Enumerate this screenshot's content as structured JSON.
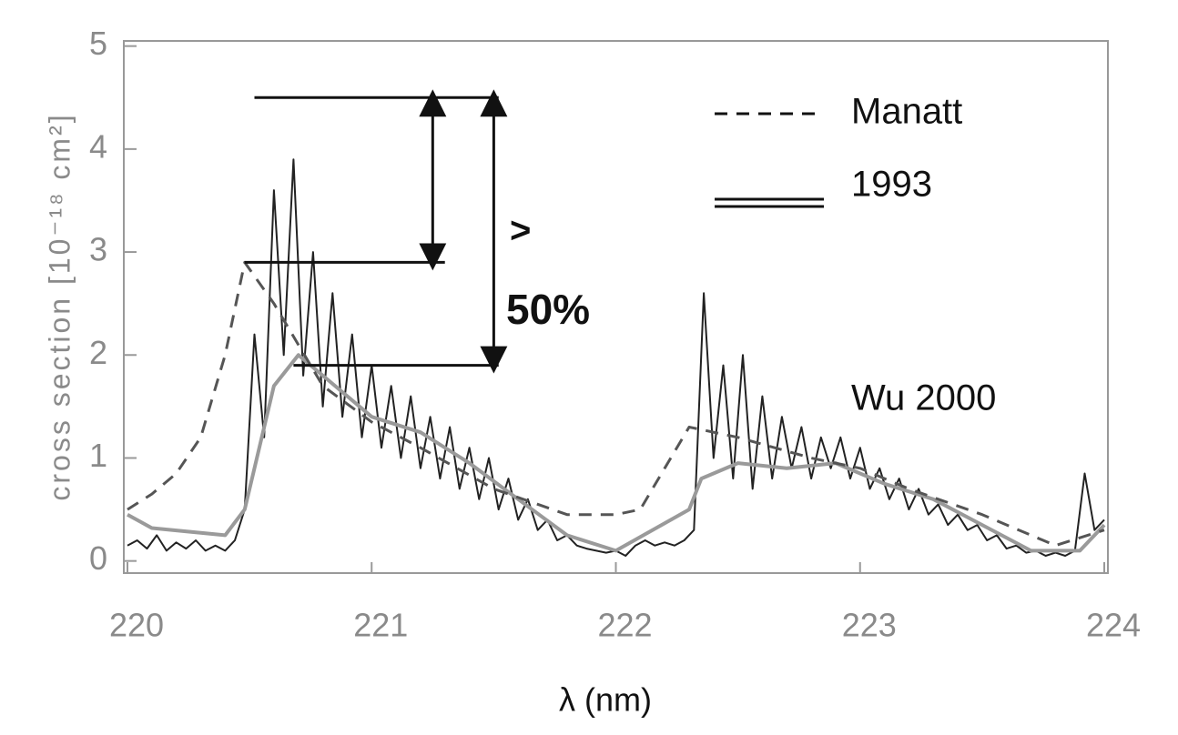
{
  "chart_data": {
    "type": "line",
    "xlabel": "λ (nm)",
    "ylabel": "cross section [10⁻¹⁸ cm²]",
    "xlim": [
      220,
      224
    ],
    "ylim": [
      -0.1,
      5.05
    ],
    "xticks": [
      220,
      221,
      222,
      223,
      224
    ],
    "yticks": [
      0,
      1,
      2,
      3,
      4,
      5
    ],
    "series": [
      {
        "style": "dashed",
        "color": "#555555",
        "x": [
          220,
          220.1,
          220.2,
          220.3,
          220.4,
          220.48,
          220.6,
          220.8,
          221,
          221.2,
          221.5,
          221.8,
          222,
          222.1,
          222.2,
          222.3,
          222.5,
          222.8,
          223,
          223.2,
          223.5,
          223.8,
          224
        ],
        "values": [
          0.5,
          0.65,
          0.85,
          1.2,
          2.0,
          2.9,
          2.5,
          1.7,
          1.35,
          1.1,
          0.7,
          0.45,
          0.45,
          0.5,
          0.9,
          1.3,
          1.2,
          1.0,
          0.9,
          0.7,
          0.45,
          0.15,
          0.3
        ]
      },
      {
        "style": "solid",
        "color": "#222222",
        "x": [
          220,
          220.04,
          220.08,
          220.12,
          220.16,
          220.2,
          220.24,
          220.28,
          220.32,
          220.36,
          220.4,
          220.44,
          220.48,
          220.52,
          220.56,
          220.6,
          220.64,
          220.68,
          220.72,
          220.76,
          220.8,
          220.84,
          220.88,
          220.92,
          220.96,
          221,
          221.04,
          221.08,
          221.12,
          221.16,
          221.2,
          221.24,
          221.28,
          221.32,
          221.36,
          221.4,
          221.44,
          221.48,
          221.52,
          221.56,
          221.6,
          221.64,
          221.68,
          221.72,
          221.76,
          221.8,
          221.84,
          221.88,
          221.92,
          221.96,
          222,
          222.04,
          222.08,
          222.12,
          222.16,
          222.2,
          222.24,
          222.28,
          222.32,
          222.36,
          222.4,
          222.44,
          222.48,
          222.52,
          222.56,
          222.6,
          222.64,
          222.68,
          222.72,
          222.76,
          222.8,
          222.84,
          222.88,
          222.92,
          222.96,
          223,
          223.04,
          223.08,
          223.12,
          223.16,
          223.2,
          223.24,
          223.28,
          223.32,
          223.36,
          223.4,
          223.44,
          223.48,
          223.52,
          223.56,
          223.6,
          223.64,
          223.68,
          223.72,
          223.76,
          223.8,
          223.84,
          223.88,
          223.92,
          223.96,
          224
        ],
        "values": [
          0.15,
          0.2,
          0.12,
          0.25,
          0.1,
          0.18,
          0.12,
          0.2,
          0.1,
          0.15,
          0.1,
          0.2,
          0.5,
          2.2,
          1.2,
          3.6,
          2.0,
          3.9,
          1.8,
          3.0,
          1.5,
          2.6,
          1.4,
          2.2,
          1.2,
          1.9,
          1.1,
          1.7,
          1.0,
          1.6,
          0.9,
          1.4,
          0.8,
          1.3,
          0.7,
          1.1,
          0.6,
          1.0,
          0.5,
          0.8,
          0.4,
          0.6,
          0.3,
          0.4,
          0.2,
          0.25,
          0.15,
          0.12,
          0.1,
          0.08,
          0.1,
          0.05,
          0.15,
          0.2,
          0.15,
          0.18,
          0.15,
          0.2,
          0.3,
          2.6,
          1.0,
          1.9,
          0.8,
          2.0,
          0.7,
          1.6,
          0.8,
          1.4,
          0.9,
          1.3,
          0.8,
          1.2,
          0.9,
          1.2,
          0.8,
          1.1,
          0.7,
          0.9,
          0.6,
          0.8,
          0.5,
          0.7,
          0.45,
          0.55,
          0.35,
          0.45,
          0.3,
          0.35,
          0.2,
          0.25,
          0.12,
          0.15,
          0.08,
          0.1,
          0.05,
          0.08,
          0.05,
          0.1,
          0.85,
          0.3,
          0.4
        ]
      },
      {
        "style": "double",
        "color": "#9a9a9a",
        "x": [
          220,
          220.1,
          220.4,
          220.48,
          220.6,
          220.7,
          220.8,
          221,
          221.2,
          221.4,
          221.6,
          221.8,
          222,
          222.3,
          222.35,
          222.5,
          222.7,
          222.9,
          223.1,
          223.3,
          223.5,
          223.7,
          223.9,
          224
        ],
        "values": [
          0.45,
          0.32,
          0.25,
          0.5,
          1.7,
          2.0,
          1.8,
          1.4,
          1.25,
          0.95,
          0.6,
          0.25,
          0.1,
          0.5,
          0.8,
          0.95,
          0.9,
          0.95,
          0.75,
          0.6,
          0.35,
          0.1,
          0.1,
          0.35
        ]
      }
    ],
    "legend": [
      {
        "label": "Manatt",
        "style": "dashed"
      },
      {
        "label": "1993",
        "style": "double"
      }
    ],
    "annotations": [
      "Wu 2000",
      ">",
      "50%"
    ],
    "reference_lines": [
      {
        "y": 4.5,
        "x": [
          220.52,
          221.52
        ]
      },
      {
        "y": 2.9,
        "x": [
          220.48,
          221.3
        ]
      },
      {
        "y": 1.9,
        "x": [
          220.68,
          221.52
        ]
      }
    ],
    "arrows": [
      {
        "x": 221.25,
        "y": [
          4.5,
          2.9
        ]
      },
      {
        "x": 221.5,
        "y": [
          4.5,
          1.9
        ]
      }
    ]
  }
}
